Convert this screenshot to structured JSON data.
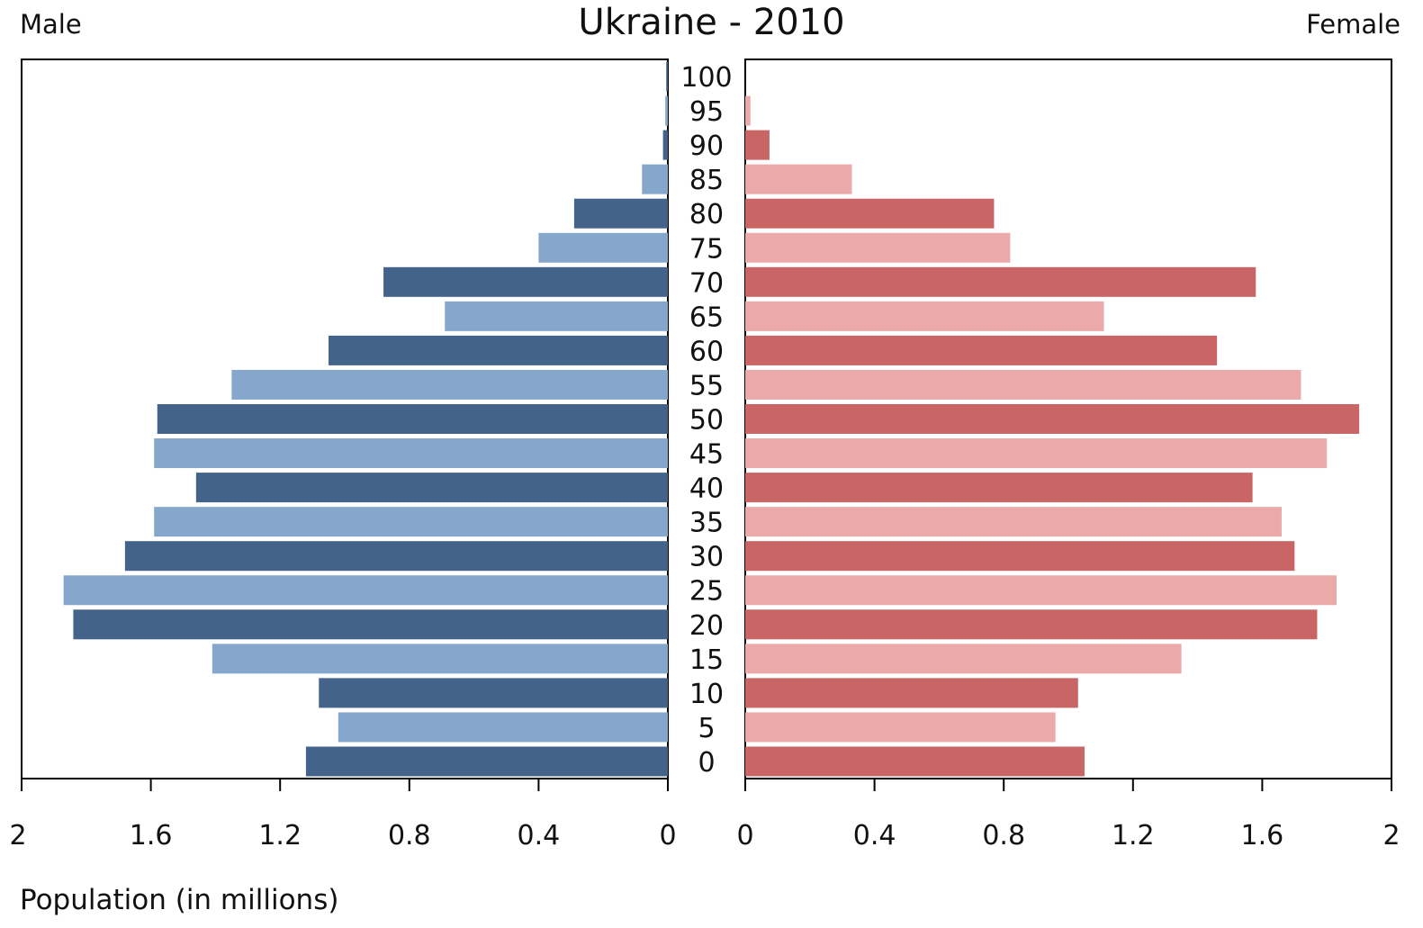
{
  "chart_data": {
    "type": "bar",
    "title": "Ukraine - 2010",
    "left_label": "Male",
    "right_label": "Female",
    "xlabel": "Population (in millions)",
    "xlim": [
      0,
      2
    ],
    "x_ticks_left": [
      "2",
      "1.6",
      "1.2",
      "0.8",
      "0.4",
      "0"
    ],
    "x_ticks_right": [
      "0",
      "0.4",
      "0.8",
      "1.2",
      "1.6",
      "2"
    ],
    "tick_values": [
      0,
      0.4,
      0.8,
      1.2,
      1.6,
      2
    ],
    "categories": [
      "100",
      "95",
      "90",
      "85",
      "80",
      "75",
      "70",
      "65",
      "60",
      "55",
      "50",
      "45",
      "40",
      "35",
      "30",
      "25",
      "20",
      "15",
      "10",
      "5",
      "0"
    ],
    "series": [
      {
        "name": "Male",
        "values": [
          0.005,
          0.008,
          0.015,
          0.08,
          0.29,
          0.4,
          0.88,
          0.69,
          1.05,
          1.35,
          1.58,
          1.59,
          1.46,
          1.59,
          1.68,
          1.87,
          1.84,
          1.41,
          1.08,
          1.02,
          1.12
        ]
      },
      {
        "name": "Female",
        "values": [
          0,
          0.016,
          0.075,
          0.33,
          0.77,
          0.82,
          1.58,
          1.11,
          1.46,
          1.72,
          1.9,
          1.8,
          1.57,
          1.66,
          1.7,
          1.83,
          1.77,
          1.35,
          1.03,
          0.96,
          1.05
        ]
      }
    ],
    "colors": {
      "male_dark": "#44638a",
      "male_light": "#85a7cc",
      "female_dark": "#c96665",
      "female_light": "#eca9a9",
      "axis": "#000000"
    },
    "grid": false
  }
}
